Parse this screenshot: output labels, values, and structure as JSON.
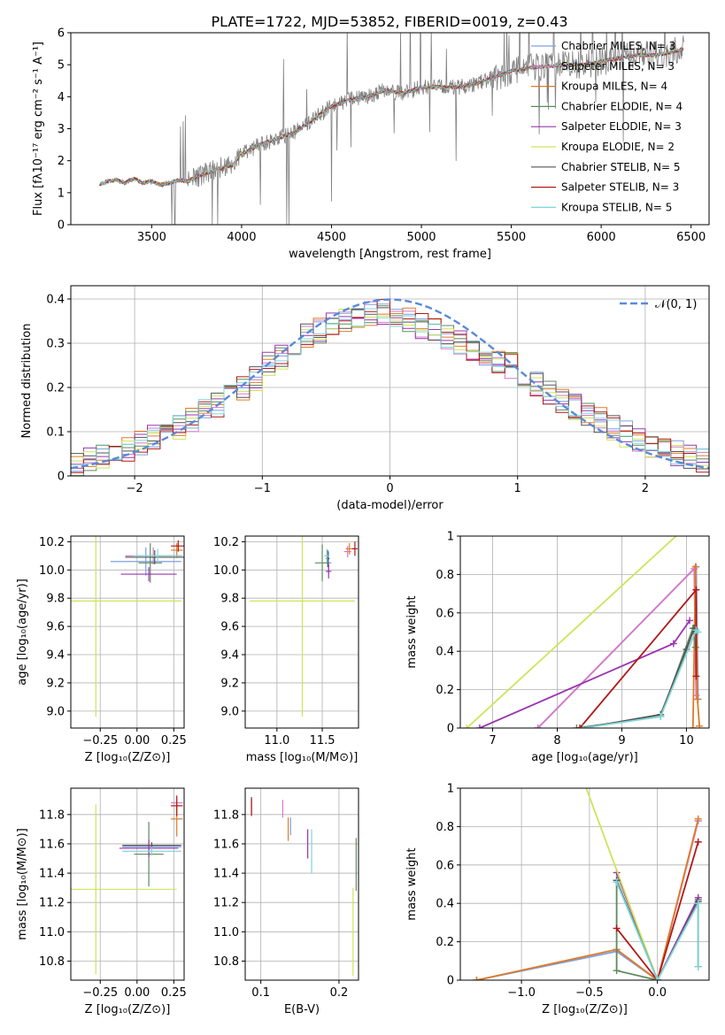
{
  "figure": {
    "title": "PLATE=1722, MJD=53852, FIBERID=0019, z=0.43"
  },
  "colors": {
    "Chabrier MILES": "#7f9fdf",
    "Salpeter MILES": "#d678c8",
    "Kroupa MILES": "#e07b28",
    "Chabrier ELODIE": "#5f8a5f",
    "Salpeter ELODIE": "#9b35b0",
    "Kroupa ELODIE": "#cfe35a",
    "Chabrier STELIB": "#555555",
    "Salpeter STELIB": "#b01818",
    "Kroupa STELIB": "#7fd6d6",
    "data": "#808080",
    "normal": "#5a8ad8"
  },
  "chart_data": [
    {
      "id": "spectrum",
      "type": "line",
      "xlabel": "wavelength [Angstrom, rest frame]",
      "ylabel": "Flux [fλ10⁻¹⁷ erg cm⁻² s⁻¹ A⁻¹]",
      "xlim": [
        3050,
        6600
      ],
      "ylim": [
        0,
        6
      ],
      "xticks": [
        3500,
        4000,
        4500,
        5000,
        5500,
        6000,
        6500
      ],
      "yticks": [
        0,
        1,
        2,
        3,
        4,
        5,
        6
      ],
      "data_continuum": {
        "x": [
          3210,
          3250,
          3300,
          3350,
          3400,
          3450,
          3500,
          3550,
          3600,
          3650,
          3700,
          3750,
          3800,
          3850,
          3900,
          3950,
          4000,
          4100,
          4200,
          4300,
          4400,
          4500,
          4600,
          4700,
          4800,
          4900,
          5000,
          5100,
          5200,
          5300,
          5400,
          5500,
          5600,
          5700,
          5800,
          5900,
          6000,
          6100,
          6200,
          6300,
          6400,
          6460
        ],
        "y": [
          1.25,
          1.35,
          1.4,
          1.3,
          1.45,
          1.3,
          1.35,
          1.25,
          1.3,
          1.4,
          1.35,
          1.5,
          1.6,
          1.7,
          1.8,
          1.85,
          2.2,
          2.5,
          2.7,
          2.9,
          3.3,
          3.7,
          3.9,
          4.0,
          4.2,
          4.1,
          4.3,
          4.3,
          4.3,
          4.4,
          4.6,
          4.8,
          4.9,
          4.95,
          5.0,
          5.0,
          5.1,
          5.2,
          5.3,
          5.3,
          5.4,
          5.5
        ]
      },
      "legend": [
        "Chabrier MILES, N_SSP=3",
        "Salpeter MILES, N_SSP=3",
        "Kroupa MILES, N_SSP=4",
        "Chabrier ELODIE, N_SSP=4",
        "Salpeter ELODIE, N_SSP=3",
        "Kroupa ELODIE, N_SSP=2",
        "Chabrier STELIB, N_SSP=5",
        "Salpeter STELIB, N_SSP=3",
        "Kroupa STELIB, N_SSP=5"
      ],
      "legend_placement": "top-right"
    },
    {
      "id": "residuals",
      "type": "line",
      "xlabel": "(data-model)/error",
      "ylabel": "Normed distribution",
      "xlim": [
        -2.5,
        2.5
      ],
      "ylim": [
        0,
        0.43
      ],
      "xticks": [
        -2,
        -1,
        0,
        1,
        2
      ],
      "yticks": [
        0.0,
        0.1,
        0.2,
        0.3,
        0.4
      ],
      "grid": true,
      "legend": [
        "𝒩(0, 1)"
      ],
      "legend_placement": "top-right",
      "hist_bins": [
        -2.5,
        2.5,
        50
      ],
      "hist_base": [
        0.03,
        0.04,
        0.045,
        0.05,
        0.06,
        0.075,
        0.09,
        0.1,
        0.11,
        0.13,
        0.145,
        0.16,
        0.18,
        0.2,
        0.22,
        0.25,
        0.27,
        0.3,
        0.32,
        0.33,
        0.34,
        0.35,
        0.36,
        0.37,
        0.37,
        0.36,
        0.35,
        0.34,
        0.33,
        0.31,
        0.3,
        0.29,
        0.28,
        0.26,
        0.25,
        0.23,
        0.21,
        0.19,
        0.17,
        0.155,
        0.14,
        0.125,
        0.11,
        0.095,
        0.08,
        0.07,
        0.06,
        0.05,
        0.04,
        0.035
      ]
    },
    {
      "id": "age-vs-Z",
      "type": "scatter",
      "xlabel": "Z [log₁₀(Z/Z⊙)]",
      "ylabel": "age  [log₁₀(age/yr)]",
      "xlim": [
        -0.45,
        0.32
      ],
      "ylim": [
        8.88,
        10.24
      ],
      "xticks": [
        -0.25,
        0.0,
        0.25
      ],
      "yticks": [
        9.0,
        9.2,
        9.4,
        9.6,
        9.8,
        10.0,
        10.2
      ],
      "tick_labels_x": [
        "−0.25",
        "0.00",
        "0.25"
      ],
      "tick_labels_y": [
        "9.0",
        "9.2",
        "9.4",
        "9.6",
        "9.8",
        "10.0",
        "10.2"
      ],
      "grid": true,
      "points": [
        {
          "model": "Chabrier MILES",
          "x": 0.06,
          "y": 10.06,
          "xerr": 0.24,
          "yerr": 0.1
        },
        {
          "model": "Salpeter MILES",
          "x": 0.11,
          "y": 10.1,
          "xerr": 0.19,
          "yerr": 0.06
        },
        {
          "model": "Kroupa MILES",
          "x": 0.27,
          "y": 10.14,
          "xerr": 0.04,
          "yerr": 0.05
        },
        {
          "model": "Chabrier ELODIE",
          "x": 0.09,
          "y": 10.05,
          "xerr": 0.08,
          "yerr": 0.14
        },
        {
          "model": "Salpeter ELODIE",
          "x": 0.08,
          "y": 9.97,
          "xerr": 0.19,
          "yerr": 0.05
        },
        {
          "model": "Kroupa ELODIE",
          "x": -0.28,
          "y": 9.78,
          "xerr": 0.58,
          "yerr": 0.82
        },
        {
          "model": "Chabrier STELIB",
          "x": 0.12,
          "y": 10.09,
          "xerr": 0.2,
          "yerr": 0.05
        },
        {
          "model": "Salpeter STELIB",
          "x": 0.28,
          "y": 10.17,
          "xerr": 0.05,
          "yerr": 0.04
        },
        {
          "model": "Kroupa STELIB",
          "x": 0.14,
          "y": 10.1,
          "xerr": 0.17,
          "yerr": 0.05
        }
      ]
    },
    {
      "id": "age-vs-mass",
      "type": "scatter",
      "xlabel": "mass [log₁₀(M/M⊙)]",
      "ylabel": "",
      "xlim": [
        10.65,
        11.9
      ],
      "ylim": [
        8.88,
        10.24
      ],
      "xticks": [
        11.0,
        11.5
      ],
      "yticks": [
        9.0,
        9.2,
        9.4,
        9.6,
        9.8,
        10.0,
        10.2
      ],
      "tick_labels_x": [
        "11.0",
        "11.5"
      ],
      "tick_labels_y": [
        "9.0",
        "9.2",
        "9.4",
        "9.6",
        "9.8",
        "10.0",
        "10.2"
      ],
      "grid": true,
      "points": [
        {
          "model": "Chabrier MILES",
          "x": 11.57,
          "y": 10.05,
          "xerr": 0.03,
          "yerr": 0.08
        },
        {
          "model": "Salpeter MILES",
          "x": 11.78,
          "y": 10.13,
          "xerr": 0.04,
          "yerr": 0.04
        },
        {
          "model": "Kroupa MILES",
          "x": 11.8,
          "y": 10.15,
          "xerr": 0.04,
          "yerr": 0.04
        },
        {
          "model": "Chabrier ELODIE",
          "x": 11.5,
          "y": 10.05,
          "xerr": 0.08,
          "yerr": 0.13
        },
        {
          "model": "Salpeter ELODIE",
          "x": 11.57,
          "y": 9.99,
          "xerr": 0.03,
          "yerr": 0.05
        },
        {
          "model": "Kroupa ELODIE",
          "x": 11.28,
          "y": 9.78,
          "xerr": 0.58,
          "yerr": 0.82
        },
        {
          "model": "Chabrier STELIB",
          "x": 11.56,
          "y": 10.08,
          "xerr": 0.02,
          "yerr": 0.06
        },
        {
          "model": "Salpeter STELIB",
          "x": 11.86,
          "y": 10.15,
          "xerr": 0.03,
          "yerr": 0.05
        },
        {
          "model": "Kroupa STELIB",
          "x": 11.55,
          "y": 10.1,
          "xerr": 0.03,
          "yerr": 0.05
        }
      ]
    },
    {
      "id": "weight-vs-age",
      "type": "line",
      "xlabel": "age  [log₁₀(age/yr)]",
      "ylabel": "mass weight",
      "xlim": [
        6.5,
        10.35
      ],
      "ylim": [
        0,
        1.0
      ],
      "xticks": [
        7,
        8,
        9,
        10
      ],
      "yticks": [
        0.0,
        0.2,
        0.4,
        0.6,
        0.8,
        1.0
      ],
      "grid": true,
      "series": [
        {
          "model": "Chabrier MILES",
          "points": [
            [
              7.7,
              0.0
            ],
            [
              10.15,
              0.84
            ],
            [
              10.18,
              0.15
            ]
          ]
        },
        {
          "model": "Salpeter MILES",
          "points": [
            [
              7.7,
              0.0
            ],
            [
              10.12,
              0.83
            ],
            [
              10.15,
              0.17
            ]
          ]
        },
        {
          "model": "Kroupa MILES",
          "points": [
            [
              10.1,
              0.0
            ],
            [
              10.14,
              0.84
            ],
            [
              10.17,
              0.15
            ],
            [
              10.2,
              0.01
            ]
          ]
        },
        {
          "model": "Chabrier ELODIE",
          "points": [
            [
              8.3,
              0.0
            ],
            [
              9.6,
              0.06
            ],
            [
              10.1,
              0.52
            ],
            [
              10.14,
              0.42
            ]
          ]
        },
        {
          "model": "Salpeter ELODIE",
          "points": [
            [
              6.8,
              0.0
            ],
            [
              9.8,
              0.44
            ],
            [
              10.05,
              0.56
            ]
          ]
        },
        {
          "model": "Kroupa ELODIE",
          "points": [
            [
              6.6,
              0.0
            ],
            [
              10.0,
              1.05
            ]
          ]
        },
        {
          "model": "Chabrier STELIB",
          "points": [
            [
              8.4,
              0.0
            ],
            [
              9.6,
              0.07
            ],
            [
              10.0,
              0.41
            ],
            [
              10.12,
              0.52
            ]
          ]
        },
        {
          "model": "Salpeter STELIB",
          "points": [
            [
              8.35,
              0.0
            ],
            [
              10.15,
              0.72
            ],
            [
              10.15,
              0.27
            ]
          ]
        },
        {
          "model": "Kroupa STELIB",
          "points": [
            [
              8.4,
              0.0
            ],
            [
              9.6,
              0.06
            ],
            [
              10.15,
              0.51
            ],
            [
              10.18,
              0.5
            ]
          ]
        }
      ]
    },
    {
      "id": "mass-vs-Z",
      "type": "scatter",
      "xlabel": "Z [log₁₀(Z/Z⊙)]",
      "ylabel": "mass [log₁₀(M/M⊙)]",
      "xlim": [
        -0.45,
        0.32
      ],
      "ylim": [
        10.67,
        11.98
      ],
      "xticks": [
        -0.25,
        0.0,
        0.25
      ],
      "yticks": [
        10.8,
        11.0,
        11.2,
        11.4,
        11.6,
        11.8
      ],
      "tick_labels_x": [
        "−0.25",
        "0.00",
        "0.25"
      ],
      "tick_labels_y": [
        "10.8",
        "11.0",
        "11.2",
        "11.4",
        "11.6",
        "11.8"
      ],
      "grid": true,
      "points": [
        {
          "model": "Chabrier MILES",
          "x": 0.1,
          "y": 11.58,
          "xerr": 0.2,
          "yerr": 0.03
        },
        {
          "model": "Salpeter MILES",
          "x": 0.27,
          "y": 11.88,
          "xerr": 0.04,
          "yerr": 0.03
        },
        {
          "model": "Kroupa MILES",
          "x": 0.27,
          "y": 11.77,
          "xerr": 0.04,
          "yerr": 0.12
        },
        {
          "model": "Chabrier ELODIE",
          "x": 0.08,
          "y": 11.53,
          "xerr": 0.1,
          "yerr": 0.22
        },
        {
          "model": "Salpeter ELODIE",
          "x": 0.08,
          "y": 11.57,
          "xerr": 0.2,
          "yerr": 0.06
        },
        {
          "model": "Kroupa ELODIE",
          "x": -0.28,
          "y": 11.29,
          "xerr": 0.55,
          "yerr": 0.58
        },
        {
          "model": "Chabrier STELIB",
          "x": 0.1,
          "y": 11.59,
          "xerr": 0.2,
          "yerr": 0.02
        },
        {
          "model": "Salpeter STELIB",
          "x": 0.27,
          "y": 11.86,
          "xerr": 0.04,
          "yerr": 0.07
        },
        {
          "model": "Kroupa STELIB",
          "x": 0.1,
          "y": 11.55,
          "xerr": 0.2,
          "yerr": 0.03
        }
      ]
    },
    {
      "id": "mass-vs-ebv",
      "type": "scatter",
      "xlabel": "E(B-V)",
      "ylabel": "",
      "xlim": [
        0.08,
        0.225
      ],
      "ylim": [
        10.67,
        11.98
      ],
      "xticks": [
        0.1,
        0.2
      ],
      "yticks": [
        10.8,
        11.0,
        11.2,
        11.4,
        11.6,
        11.8
      ],
      "tick_labels_x": [
        "0.1",
        "0.2"
      ],
      "tick_labels_y": [
        "10.8",
        "11.0",
        "11.2",
        "11.4",
        "11.6",
        "11.8"
      ],
      "grid": true,
      "points": [
        {
          "model": "Chabrier MILES",
          "x": 0.138,
          "y": 11.72,
          "yerr": 0.06
        },
        {
          "model": "Salpeter MILES",
          "x": 0.128,
          "y": 11.84,
          "yerr": 0.06
        },
        {
          "model": "Kroupa MILES",
          "x": 0.135,
          "y": 11.7,
          "yerr": 0.08
        },
        {
          "model": "Chabrier ELODIE",
          "x": 0.222,
          "y": 11.46,
          "yerr": 0.18
        },
        {
          "model": "Salpeter ELODIE",
          "x": 0.16,
          "y": 11.6,
          "yerr": 0.1
        },
        {
          "model": "Kroupa ELODIE",
          "x": 0.218,
          "y": 11.0,
          "yerr": 0.3
        },
        {
          "model": "Chabrier STELIB",
          "x": 0.088,
          "y": 11.86,
          "yerr": 0.06
        },
        {
          "model": "Salpeter STELIB",
          "x": 0.088,
          "y": 11.85,
          "yerr": 0.06
        },
        {
          "model": "Kroupa STELIB",
          "x": 0.165,
          "y": 11.55,
          "yerr": 0.15
        }
      ]
    },
    {
      "id": "weight-vs-Z",
      "type": "line",
      "xlabel": "Z [log₁₀(Z/Z⊙)]",
      "ylabel": "mass weight",
      "xlim": [
        -1.45,
        0.38
      ],
      "ylim": [
        0,
        1.0
      ],
      "xticks": [
        -1.0,
        -0.5,
        0.0
      ],
      "tick_labels_x": [
        "−1.0",
        "−0.5",
        "0.0"
      ],
      "yticks": [
        0.0,
        0.2,
        0.4,
        0.6,
        0.8,
        1.0
      ],
      "grid": true,
      "series": [
        {
          "model": "Chabrier MILES",
          "points": [
            [
              -1.33,
              0.0
            ],
            [
              -0.3,
              0.15
            ],
            [
              0.0,
              0.0
            ],
            [
              0.3,
              0.83
            ]
          ]
        },
        {
          "model": "Salpeter MILES",
          "points": [
            [
              -0.3,
              0.16
            ],
            [
              0.0,
              0.0
            ],
            [
              0.3,
              0.83
            ]
          ]
        },
        {
          "model": "Kroupa MILES",
          "points": [
            [
              -1.33,
              0.0
            ],
            [
              -0.3,
              0.16
            ],
            [
              0.0,
              0.0
            ],
            [
              0.3,
              0.84
            ]
          ]
        },
        {
          "model": "Chabrier ELODIE",
          "points": [
            [
              -0.3,
              0.52
            ],
            [
              -0.3,
              0.05
            ],
            [
              0.0,
              0.0
            ],
            [
              0.3,
              0.42
            ]
          ]
        },
        {
          "model": "Salpeter ELODIE",
          "points": [
            [
              -0.3,
              0.56
            ],
            [
              0.0,
              0.0
            ],
            [
              0.3,
              0.43
            ]
          ]
        },
        {
          "model": "Kroupa ELODIE",
          "points": [
            [
              -0.55,
              1.05
            ],
            [
              0.0,
              0.0
            ]
          ]
        },
        {
          "model": "Chabrier STELIB",
          "points": [
            [
              -0.3,
              0.52
            ],
            [
              0.0,
              0.0
            ],
            [
              0.3,
              0.41
            ],
            [
              0.3,
              0.07
            ]
          ]
        },
        {
          "model": "Salpeter STELIB",
          "points": [
            [
              -0.3,
              0.27
            ],
            [
              0.0,
              0.0
            ],
            [
              0.3,
              0.72
            ]
          ]
        },
        {
          "model": "Kroupa STELIB",
          "points": [
            [
              -0.3,
              0.51
            ],
            [
              0.0,
              0.0
            ],
            [
              0.3,
              0.4
            ],
            [
              0.3,
              0.07
            ]
          ]
        }
      ]
    }
  ]
}
